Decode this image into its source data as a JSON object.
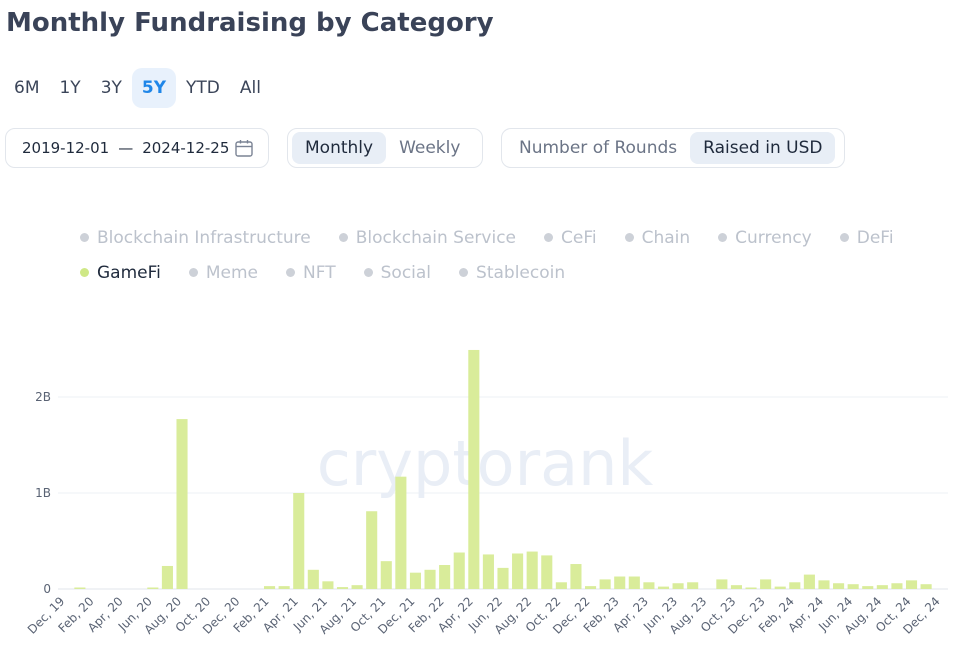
{
  "title": "Monthly Fundraising by Category",
  "ranges": [
    "6M",
    "1Y",
    "3Y",
    "5Y",
    "YTD",
    "All"
  ],
  "active_range": "5Y",
  "date_from": "2019-12-01",
  "date_separator": "—",
  "date_to": "2024-12-25",
  "interval": {
    "options": [
      "Monthly",
      "Weekly"
    ],
    "active": "Monthly"
  },
  "metric": {
    "options": [
      "Number of Rounds",
      "Raised in USD"
    ],
    "active": "Raised in USD"
  },
  "watermark": "cryptorank",
  "colors": {
    "bar": "#d9ec9a",
    "active_tab": "#1f86e8",
    "legend_on": "#cfe886",
    "legend_off": "#cdd1d8"
  },
  "legend": [
    {
      "label": "Blockchain Infrastructure",
      "active": false
    },
    {
      "label": "Blockchain Service",
      "active": false
    },
    {
      "label": "CeFi",
      "active": false
    },
    {
      "label": "Chain",
      "active": false
    },
    {
      "label": "Currency",
      "active": false
    },
    {
      "label": "DeFi",
      "active": false
    },
    {
      "label": "GameFi",
      "active": true
    },
    {
      "label": "Meme",
      "active": false
    },
    {
      "label": "NFT",
      "active": false
    },
    {
      "label": "Social",
      "active": false
    },
    {
      "label": "Stablecoin",
      "active": false
    }
  ],
  "chart_data": {
    "type": "bar",
    "title": "Monthly Fundraising by Category",
    "series_name": "GameFi",
    "ylabel": "Raised in USD",
    "ylim": [
      0,
      2500000000
    ],
    "yticks": [
      0,
      1000000000,
      2000000000
    ],
    "ytick_labels": [
      "0",
      "1B",
      "2B"
    ],
    "grid": true,
    "xtick_labels": [
      "Dec, 19",
      "Feb, 20",
      "Apr, 20",
      "Jun, 20",
      "Aug, 20",
      "Oct, 20",
      "Dec, 20",
      "Feb, 21",
      "Apr, 21",
      "Jun, 21",
      "Aug, 21",
      "Oct, 21",
      "Dec, 21",
      "Feb, 22",
      "Apr, 22",
      "Jun, 22",
      "Aug, 22",
      "Oct, 22",
      "Dec, 22",
      "Feb, 23",
      "Apr, 23",
      "Jun, 23",
      "Aug, 23",
      "Oct, 23",
      "Dec, 23",
      "Feb, 24",
      "Apr, 24",
      "Jun, 24",
      "Aug, 24",
      "Oct, 24",
      "Dec, 24"
    ],
    "categories": [
      "Dec 2019",
      "Jan 2020",
      "Feb 2020",
      "Mar 2020",
      "Apr 2020",
      "May 2020",
      "Jun 2020",
      "Jul 2020",
      "Aug 2020",
      "Sep 2020",
      "Oct 2020",
      "Nov 2020",
      "Dec 2020",
      "Jan 2021",
      "Feb 2021",
      "Mar 2021",
      "Apr 2021",
      "May 2021",
      "Jun 2021",
      "Jul 2021",
      "Aug 2021",
      "Sep 2021",
      "Oct 2021",
      "Nov 2021",
      "Dec 2021",
      "Jan 2022",
      "Feb 2022",
      "Mar 2022",
      "Apr 2022",
      "May 2022",
      "Jun 2022",
      "Jul 2022",
      "Aug 2022",
      "Sep 2022",
      "Oct 2022",
      "Nov 2022",
      "Dec 2022",
      "Jan 2023",
      "Feb 2023",
      "Mar 2023",
      "Apr 2023",
      "May 2023",
      "Jun 2023",
      "Jul 2023",
      "Aug 2023",
      "Sep 2023",
      "Oct 2023",
      "Nov 2023",
      "Dec 2023",
      "Jan 2024",
      "Feb 2024",
      "Mar 2024",
      "Apr 2024",
      "May 2024",
      "Jun 2024",
      "Jul 2024",
      "Aug 2024",
      "Sep 2024",
      "Oct 2024",
      "Nov 2024",
      "Dec 2024"
    ],
    "values": [
      0,
      10000000,
      0,
      0,
      0,
      0,
      5000000,
      240000000,
      1770000000,
      0,
      0,
      0,
      0,
      0,
      30000000,
      30000000,
      1000000000,
      200000000,
      80000000,
      20000000,
      40000000,
      810000000,
      290000000,
      1170000000,
      170000000,
      200000000,
      250000000,
      380000000,
      2490000000,
      360000000,
      220000000,
      370000000,
      390000000,
      350000000,
      70000000,
      260000000,
      30000000,
      100000000,
      130000000,
      130000000,
      70000000,
      25000000,
      60000000,
      70000000,
      0,
      100000000,
      40000000,
      15000000,
      100000000,
      25000000,
      70000000,
      150000000,
      90000000,
      60000000,
      50000000,
      30000000,
      40000000,
      60000000,
      90000000,
      50000000,
      0
    ]
  }
}
